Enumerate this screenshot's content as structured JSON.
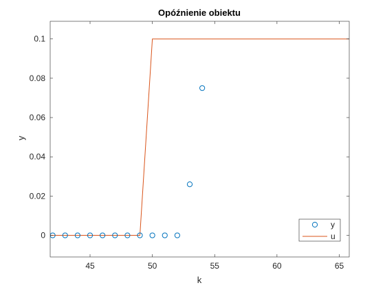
{
  "chart_data": {
    "type": "line",
    "title": "Opóźnienie obiektu",
    "xlabel": "k",
    "ylabel": "y",
    "xlim": [
      41.8,
      65.8
    ],
    "ylim": [
      -0.011,
      0.109
    ],
    "xticks": [
      45,
      50,
      55,
      60,
      65
    ],
    "yticks": [
      0,
      0.02,
      0.04,
      0.06,
      0.08,
      0.1
    ],
    "xtick_labels": [
      "45",
      "50",
      "55",
      "60",
      "65"
    ],
    "ytick_labels": [
      "0",
      "0.02",
      "0.04",
      "0.06",
      "0.08",
      "0.1"
    ],
    "grid": false,
    "legend_position": "bottom-right",
    "series": [
      {
        "name": "y",
        "style": "markers-circle",
        "color": "#0072BD",
        "x": [
          42,
          43,
          44,
          45,
          46,
          47,
          48,
          49,
          50,
          51,
          52,
          53,
          54
        ],
        "y": [
          0,
          0,
          0,
          0,
          0,
          0,
          0,
          0,
          0,
          0,
          0,
          0.026,
          0.075
        ]
      },
      {
        "name": "u",
        "style": "line",
        "color": "#D95319",
        "x": [
          41,
          42,
          43,
          44,
          45,
          46,
          47,
          48,
          49,
          50,
          51,
          52,
          53,
          54,
          55,
          56,
          57,
          58,
          59,
          60,
          61,
          62,
          63,
          64,
          65,
          66
        ],
        "y": [
          0,
          0,
          0,
          0,
          0,
          0,
          0,
          0,
          0,
          0.1,
          0.1,
          0.1,
          0.1,
          0.1,
          0.1,
          0.1,
          0.1,
          0.1,
          0.1,
          0.1,
          0.1,
          0.1,
          0.1,
          0.1,
          0.1,
          0.1
        ]
      }
    ]
  }
}
